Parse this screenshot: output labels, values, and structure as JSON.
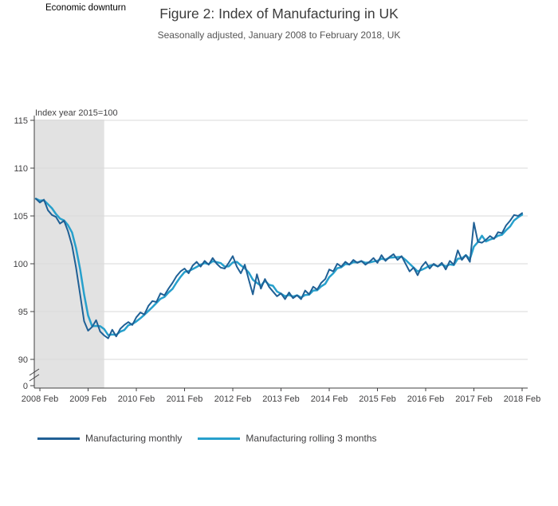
{
  "header": {
    "annotation": "Economic downturn",
    "title": "Figure 2: Index of Manufacturing in UK",
    "subtitle": "Seasonally adjusted, January 2008 to February 2018, UK"
  },
  "chart_data": {
    "type": "line",
    "title": "Figure 2: Index of Manufacturing in UK",
    "subtitle": "Seasonally adjusted, January 2008 to February 2018, UK",
    "y_axis_label": "Index year 2015=100",
    "x_start": "2008-01",
    "x_frequency": "monthly",
    "x_tick_labels": [
      "2008 Feb",
      "2009 Feb",
      "2010 Feb",
      "2011 Feb",
      "2012 Feb",
      "2013 Feb",
      "2014 Feb",
      "2015 Feb",
      "2016 Feb",
      "2017 Feb",
      "2018 Feb"
    ],
    "y_ticks": [
      0,
      90,
      95,
      100,
      105,
      110,
      115
    ],
    "ylim_display": [
      90,
      115
    ],
    "axis_break_between": [
      0,
      90
    ],
    "grid": "horizontal",
    "legend_position": "bottom",
    "shaded_region": {
      "label": "Economic downturn",
      "from_month_index": 0,
      "to_month_index": 17,
      "color": "#e2e2e2"
    },
    "series": [
      {
        "name": "Manufacturing monthly",
        "color": "#206095",
        "values": [
          106.8,
          106.4,
          106.7,
          105.6,
          105.1,
          104.9,
          104.2,
          104.5,
          103.4,
          101.9,
          99.6,
          96.8,
          94.0,
          93.0,
          93.4,
          94.1,
          92.9,
          92.5,
          92.2,
          93.1,
          92.4,
          93.2,
          93.6,
          93.9,
          93.6,
          94.4,
          94.9,
          94.7,
          95.6,
          96.1,
          96.0,
          96.9,
          96.7,
          97.4,
          98.0,
          98.7,
          99.2,
          99.5,
          99.0,
          99.8,
          100.2,
          99.7,
          100.3,
          99.9,
          100.6,
          100.0,
          99.6,
          99.5,
          100.1,
          100.8,
          99.7,
          99.0,
          99.9,
          98.3,
          96.8,
          98.9,
          97.4,
          98.4,
          97.6,
          97.1,
          96.6,
          96.9,
          96.3,
          97.0,
          96.4,
          96.7,
          96.3,
          97.2,
          96.8,
          97.6,
          97.3,
          98.0,
          98.4,
          99.4,
          99.2,
          100.0,
          99.7,
          100.2,
          99.9,
          100.4,
          100.1,
          100.3,
          99.9,
          100.2,
          100.6,
          100.1,
          100.9,
          100.3,
          100.7,
          101.0,
          100.4,
          100.8,
          100.0,
          99.2,
          99.6,
          98.8,
          99.7,
          100.2,
          99.5,
          100.0,
          99.7,
          100.1,
          99.4,
          100.3,
          99.9,
          101.4,
          100.4,
          100.9,
          100.2,
          104.3,
          102.3,
          102.2,
          102.5,
          102.9,
          102.6,
          103.3,
          103.2,
          104.0,
          104.5,
          105.1,
          105.0,
          105.3
        ]
      },
      {
        "name": "Manufacturing rolling 3 months",
        "color": "#27a0cc",
        "derived": "rolling_mean_3_of_monthly"
      }
    ]
  }
}
